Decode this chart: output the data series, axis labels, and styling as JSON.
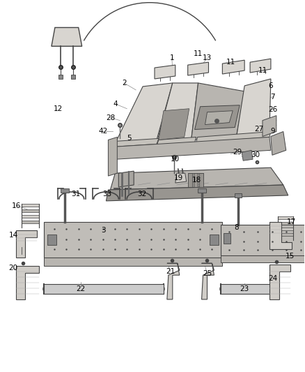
{
  "bg_color": "#ffffff",
  "lc": "#444444",
  "tc": "#000000",
  "fs": 7.5,
  "seat_color": "#d8d5d0",
  "seat_dark": "#b8b5b0",
  "seat_darker": "#989590",
  "frame_color": "#c0bdb8",
  "part_color": "#d0cdc8",
  "labels": [
    [
      "1",
      247,
      82
    ],
    [
      "2",
      178,
      118
    ],
    [
      "4",
      165,
      148
    ],
    [
      "5",
      185,
      198
    ],
    [
      "6",
      390,
      122
    ],
    [
      "7",
      393,
      138
    ],
    [
      "8",
      340,
      326
    ],
    [
      "9",
      393,
      188
    ],
    [
      "10",
      252,
      228
    ],
    [
      "11",
      285,
      76
    ],
    [
      "11",
      332,
      88
    ],
    [
      "11",
      378,
      100
    ],
    [
      "12",
      83,
      155
    ],
    [
      "13",
      298,
      82
    ],
    [
      "14",
      18,
      337
    ],
    [
      "15",
      418,
      368
    ],
    [
      "16",
      22,
      295
    ],
    [
      "17",
      420,
      318
    ],
    [
      "18",
      283,
      258
    ],
    [
      "19",
      257,
      255
    ],
    [
      "20",
      18,
      385
    ],
    [
      "21",
      245,
      390
    ],
    [
      "22",
      115,
      415
    ],
    [
      "23",
      352,
      415
    ],
    [
      "24",
      393,
      400
    ],
    [
      "25",
      298,
      393
    ],
    [
      "26",
      393,
      156
    ],
    [
      "27",
      373,
      184
    ],
    [
      "28",
      158,
      168
    ],
    [
      "29",
      342,
      218
    ],
    [
      "30",
      368,
      222
    ],
    [
      "31",
      108,
      278
    ],
    [
      "32",
      204,
      278
    ],
    [
      "33",
      153,
      278
    ],
    [
      "42",
      148,
      188
    ],
    [
      "3",
      148,
      330
    ]
  ],
  "leader_lines": [
    [
      "1",
      247,
      82,
      248,
      100
    ],
    [
      "2",
      178,
      118,
      195,
      128
    ],
    [
      "4",
      165,
      148,
      182,
      155
    ],
    [
      "5",
      185,
      198,
      200,
      190
    ],
    [
      "6",
      390,
      122,
      375,
      130
    ],
    [
      "7",
      393,
      138,
      375,
      142
    ],
    [
      "8",
      340,
      326,
      340,
      340
    ],
    [
      "9",
      393,
      188,
      375,
      195
    ],
    [
      "10",
      252,
      228,
      248,
      218
    ],
    [
      "13",
      298,
      82,
      288,
      95
    ],
    [
      "14",
      18,
      337,
      32,
      340
    ],
    [
      "15",
      418,
      368,
      402,
      372
    ],
    [
      "16",
      22,
      295,
      38,
      300
    ],
    [
      "17",
      420,
      318,
      402,
      322
    ],
    [
      "18",
      283,
      258,
      278,
      252
    ],
    [
      "19",
      257,
      255,
      252,
      248
    ],
    [
      "26",
      393,
      156,
      375,
      158
    ],
    [
      "27",
      373,
      184,
      360,
      188
    ],
    [
      "28",
      158,
      168,
      172,
      172
    ],
    [
      "29",
      342,
      218,
      332,
      220
    ],
    [
      "30",
      368,
      222,
      358,
      224
    ],
    [
      "42",
      148,
      188,
      162,
      188
    ],
    [
      "3",
      148,
      330,
      170,
      338
    ],
    [
      "20",
      18,
      385,
      35,
      390
    ],
    [
      "21",
      245,
      390,
      242,
      382
    ],
    [
      "22",
      115,
      415,
      115,
      405
    ],
    [
      "23",
      352,
      415,
      352,
      407
    ],
    [
      "24",
      393,
      400,
      390,
      388
    ],
    [
      "25",
      298,
      393,
      295,
      382
    ]
  ]
}
